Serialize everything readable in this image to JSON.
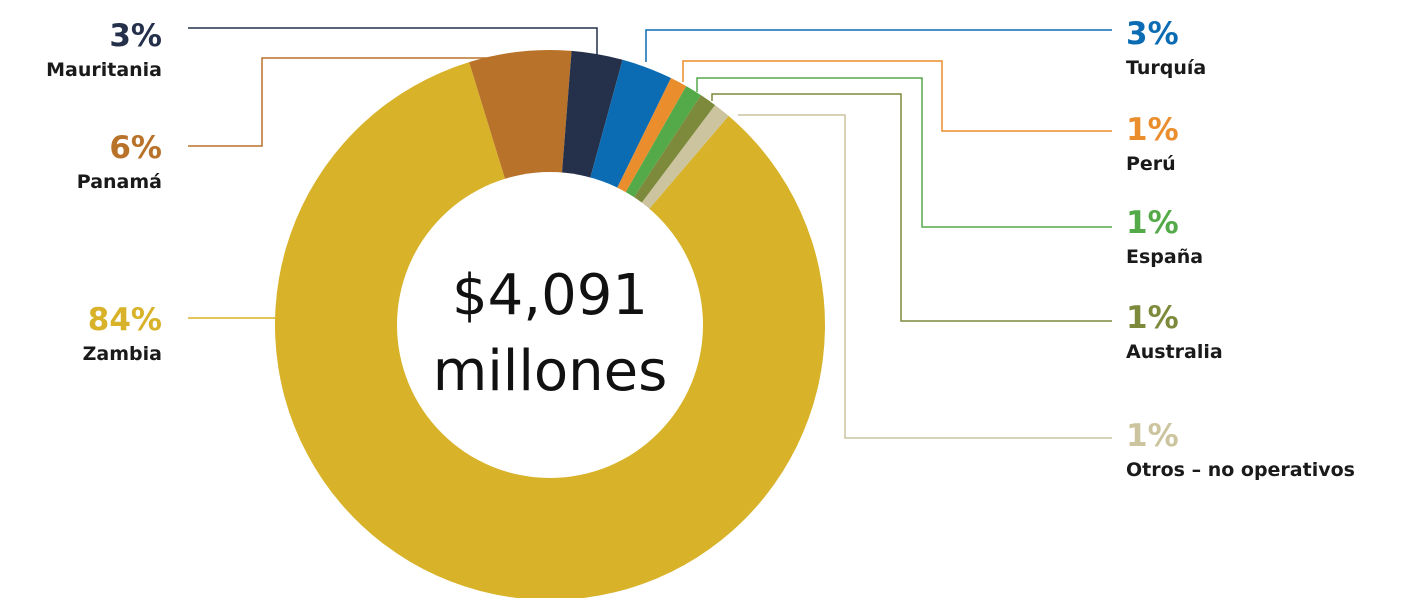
{
  "chart_data": {
    "type": "pie",
    "donut": true,
    "center_value": "$4,091",
    "center_unit": "millones",
    "slices": [
      {
        "name": "Zambia",
        "label": "84%",
        "value": 84,
        "color": "#D8B228",
        "label_color": "#D8B228"
      },
      {
        "name": "Panamá",
        "label": "6%",
        "value": 6,
        "color": "#B87229",
        "label_color": "#B87229"
      },
      {
        "name": "Mauritania",
        "label": "3%",
        "value": 3,
        "color": "#25314A",
        "label_color": "#25314A"
      },
      {
        "name": "Turquía",
        "label": "3%",
        "value": 3,
        "color": "#0B6CB4",
        "label_color": "#0B6CB4"
      },
      {
        "name": "Perú",
        "label": "1%",
        "value": 1,
        "color": "#EA8D2C",
        "label_color": "#EA8D2C"
      },
      {
        "name": "España",
        "label": "1%",
        "value": 1,
        "color": "#54A948",
        "label_color": "#54A948"
      },
      {
        "name": "Australia",
        "label": "1%",
        "value": 1,
        "color": "#7D8A3C",
        "label_color": "#7D8A3C"
      },
      {
        "name": "Otros – no operativos",
        "label": "1%",
        "value": 1,
        "color": "#CBC49E",
        "label_color": "#CBC49E"
      }
    ]
  }
}
